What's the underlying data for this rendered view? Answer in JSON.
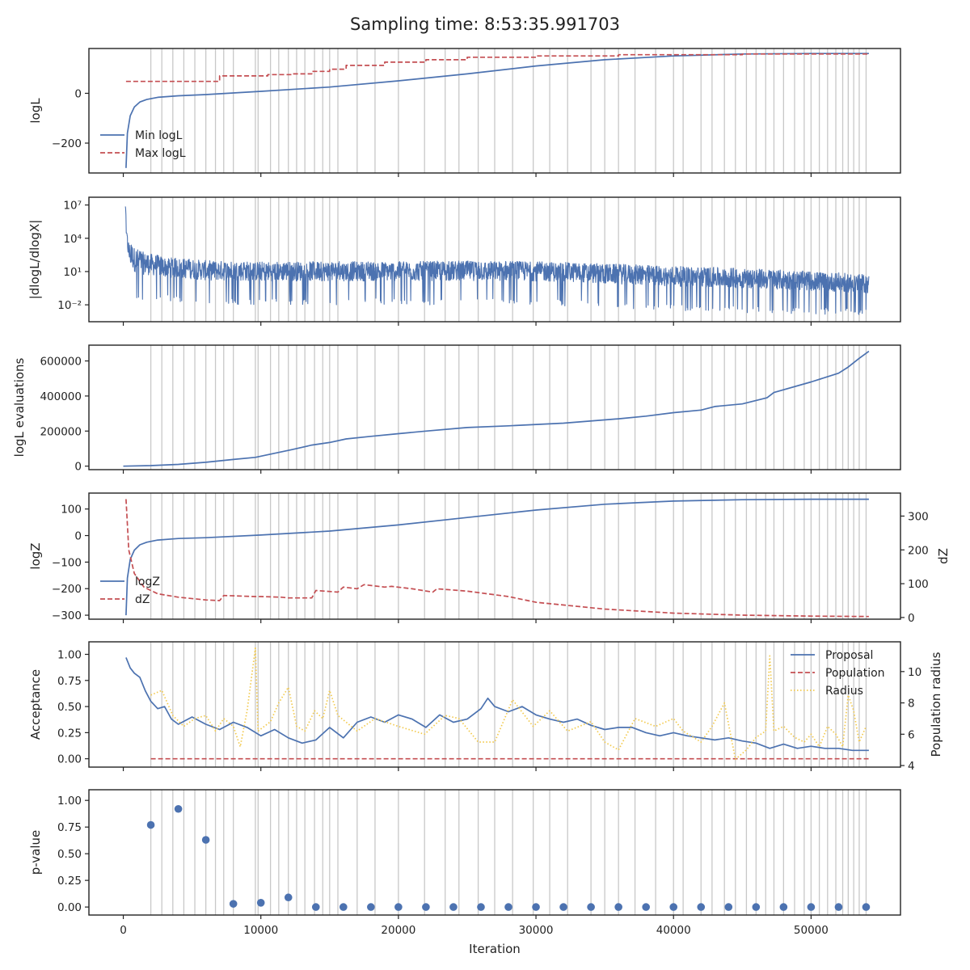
{
  "title": "Sampling time: 8:53:35.991703",
  "shared_x": {
    "label": "Iteration",
    "range": [
      -2500,
      56500
    ],
    "ticks": [
      0,
      10000,
      20000,
      30000,
      40000,
      50000
    ],
    "tick_labels": [
      "0",
      "10000",
      "20000",
      "30000",
      "40000",
      "50000"
    ],
    "vertical_markers": [
      2000,
      2800,
      3600,
      4400,
      5200,
      6000,
      6700,
      7300,
      8000,
      9600,
      9800,
      10700,
      11300,
      12000,
      12600,
      13200,
      13900,
      14500,
      15000,
      15600,
      17000,
      18300,
      20000,
      21900,
      23400,
      24400,
      25800,
      27000,
      28300,
      29800,
      31000,
      32300,
      34000,
      35000,
      36000,
      37200,
      38700,
      40000,
      40700,
      42000,
      42800,
      43700,
      44500,
      45300,
      46000,
      46700,
      47300,
      48000,
      48800,
      49500,
      50000,
      50600,
      51200,
      51800,
      52300,
      52700,
      53100,
      53500,
      54000
    ],
    "marker_color": "#c8c8c8"
  },
  "chart_data": [
    {
      "type": "line",
      "ylabel": "logL",
      "ylim": [
        -320,
        180
      ],
      "yticks": [
        -200,
        0
      ],
      "ytick_labels": [
        "−200",
        "0"
      ],
      "legend": {
        "position": "lower-left",
        "entries": [
          "Min logL",
          "Max logL"
        ]
      },
      "series": [
        {
          "name": "Min logL",
          "color": "#4c72b0",
          "style": "solid",
          "x": [
            200,
            300,
            500,
            800,
            1200,
            1700,
            2500,
            4000,
            6000,
            10000,
            15000,
            20000,
            25000,
            30000,
            35000,
            40000,
            45000,
            50000,
            54200
          ],
          "y": [
            -300,
            -160,
            -90,
            -55,
            -35,
            -25,
            -16,
            -10,
            -5,
            8,
            25,
            50,
            78,
            110,
            135,
            150,
            158,
            160,
            160
          ]
        },
        {
          "name": "Max logL",
          "color": "#c44e52",
          "style": "dashed",
          "x": [
            200,
            7000,
            7000,
            10500,
            10500,
            12300,
            12300,
            13700,
            13700,
            15000,
            15000,
            16200,
            16200,
            19000,
            19000,
            22000,
            22000,
            25000,
            25000,
            30000,
            30000,
            36000,
            36000,
            45000,
            45000,
            54200
          ],
          "y": [
            48,
            48,
            70,
            70,
            75,
            75,
            78,
            78,
            88,
            88,
            97,
            97,
            112,
            112,
            125,
            125,
            135,
            135,
            145,
            145,
            150,
            150,
            155,
            155,
            158,
            158
          ]
        }
      ]
    },
    {
      "type": "line",
      "ylabel": "|dlogL/dlogX|",
      "scale": "log",
      "ylim": [
        0.0003,
        50000000
      ],
      "yticks": [
        0.01,
        10,
        10000,
        10000000
      ],
      "ytick_labels": [
        "10⁻²",
        "10¹",
        "10⁴",
        "10⁷"
      ],
      "series": [
        {
          "name": "",
          "color": "#4c72b0",
          "style": "noisy-band",
          "x": [
            150,
            200,
            400,
            800,
            1500,
            3000,
            6000,
            10000,
            15000,
            20000,
            25000,
            30000,
            35000,
            40000,
            45000,
            50000,
            54200
          ],
          "upper": [
            10000000,
            50000,
            5000,
            1500,
            500,
            200,
            100,
            80,
            80,
            80,
            90,
            80,
            50,
            30,
            20,
            10,
            5
          ],
          "lower": [
            1000,
            5,
            0.1,
            0.02,
            0.02,
            0.02,
            0.01,
            0.01,
            0.01,
            0.01,
            0.01,
            0.01,
            0.005,
            0.003,
            0.002,
            0.0015,
            0.001
          ]
        }
      ]
    },
    {
      "type": "line",
      "ylabel": "logL evaluations",
      "ylim": [
        -20000,
        690000
      ],
      "yticks": [
        0,
        200000,
        400000,
        600000
      ],
      "ytick_labels": [
        "0",
        "200000",
        "400000",
        "600000"
      ],
      "series": [
        {
          "name": "",
          "color": "#4c72b0",
          "style": "solid",
          "x": [
            0,
            2000,
            4000,
            6000,
            8000,
            9600,
            10500,
            12300,
            13700,
            15000,
            16200,
            18000,
            20000,
            22000,
            25000,
            28000,
            32000,
            36000,
            38000,
            40000,
            42000,
            43000,
            45000,
            46800,
            47300,
            50000,
            52000,
            52700,
            53500,
            54200
          ],
          "y": [
            0,
            3000,
            10000,
            22000,
            38000,
            50000,
            65000,
            95000,
            120000,
            135000,
            155000,
            170000,
            185000,
            200000,
            220000,
            230000,
            245000,
            270000,
            285000,
            305000,
            320000,
            340000,
            355000,
            390000,
            420000,
            480000,
            530000,
            565000,
            615000,
            655000
          ]
        }
      ]
    },
    {
      "type": "line",
      "ylabel": "logZ",
      "ylim": [
        -315,
        160
      ],
      "yticks": [
        -300,
        -200,
        -100,
        0,
        100
      ],
      "ytick_labels": [
        "−300",
        "−200",
        "−100",
        "0",
        "100"
      ],
      "y2label": "dZ",
      "y2lim": [
        -5,
        368
      ],
      "y2ticks": [
        0,
        100,
        200,
        300
      ],
      "y2tick_labels": [
        "0",
        "100",
        "200",
        "300"
      ],
      "legend": {
        "position": "lower-left",
        "entries": [
          "logZ",
          "dZ"
        ]
      },
      "series": [
        {
          "name": "logZ",
          "axis": "left",
          "color": "#4c72b0",
          "style": "solid",
          "x": [
            200,
            300,
            500,
            800,
            1200,
            1700,
            2500,
            4000,
            6000,
            10000,
            15000,
            20000,
            25000,
            30000,
            35000,
            40000,
            45000,
            50000,
            54200
          ],
          "y": [
            -300,
            -160,
            -90,
            -55,
            -35,
            -25,
            -17,
            -11,
            -8,
            2,
            17,
            40,
            68,
            96,
            118,
            130,
            135,
            137,
            137
          ]
        },
        {
          "name": "dZ",
          "axis": "right",
          "color": "#c44e52",
          "style": "dashed",
          "x": [
            200,
            400,
            800,
            1500,
            2500,
            4000,
            6000,
            7000,
            7300,
            9600,
            10000,
            11500,
            12000,
            13700,
            14000,
            15600,
            16000,
            17000,
            17500,
            19000,
            19500,
            21000,
            22500,
            22800,
            25000,
            28000,
            30000,
            35000,
            40000,
            45000,
            50000,
            54200
          ],
          "y": [
            350,
            200,
            130,
            90,
            70,
            60,
            52,
            50,
            65,
            62,
            62,
            60,
            58,
            58,
            80,
            75,
            90,
            85,
            97,
            90,
            92,
            85,
            75,
            85,
            78,
            62,
            45,
            25,
            13,
            7,
            4,
            3
          ]
        }
      ]
    },
    {
      "type": "line",
      "ylabel": "Acceptance",
      "ylim": [
        -0.08,
        1.12
      ],
      "yticks": [
        0.0,
        0.25,
        0.5,
        0.75,
        1.0
      ],
      "ytick_labels": [
        "0.00",
        "0.25",
        "0.50",
        "0.75",
        "1.00"
      ],
      "y2label": "Population radius",
      "y2lim": [
        3.9,
        11.9
      ],
      "y2ticks": [
        4,
        6,
        8,
        10
      ],
      "y2tick_labels": [
        "4",
        "6",
        "8",
        "10"
      ],
      "legend": {
        "position": "top-right",
        "entries": [
          "Proposal",
          "Population",
          "Radius"
        ]
      },
      "series": [
        {
          "name": "Proposal",
          "axis": "left",
          "color": "#4c72b0",
          "style": "solid",
          "x": [
            200,
            500,
            800,
            1200,
            1600,
            2000,
            2500,
            3000,
            3500,
            4000,
            5000,
            6000,
            7000,
            8000,
            9000,
            10000,
            11000,
            12000,
            13000,
            14000,
            15000,
            16000,
            17000,
            18000,
            19000,
            20000,
            21000,
            22000,
            23000,
            24000,
            25000,
            26000,
            26500,
            27000,
            28000,
            29000,
            30000,
            31000,
            32000,
            33000,
            34000,
            35000,
            36000,
            37000,
            38000,
            39000,
            40000,
            41000,
            42000,
            43000,
            44000,
            45000,
            46000,
            47000,
            48000,
            49000,
            50000,
            51000,
            52000,
            53000,
            54200
          ],
          "y": [
            0.97,
            0.87,
            0.82,
            0.78,
            0.65,
            0.55,
            0.48,
            0.5,
            0.38,
            0.33,
            0.4,
            0.33,
            0.28,
            0.35,
            0.3,
            0.22,
            0.28,
            0.2,
            0.15,
            0.18,
            0.3,
            0.2,
            0.35,
            0.4,
            0.35,
            0.42,
            0.38,
            0.3,
            0.42,
            0.35,
            0.38,
            0.48,
            0.58,
            0.5,
            0.45,
            0.5,
            0.42,
            0.38,
            0.35,
            0.38,
            0.32,
            0.28,
            0.3,
            0.3,
            0.25,
            0.22,
            0.25,
            0.22,
            0.2,
            0.18,
            0.2,
            0.17,
            0.15,
            0.1,
            0.14,
            0.1,
            0.12,
            0.1,
            0.1,
            0.08,
            0.08
          ]
        },
        {
          "name": "Population",
          "axis": "left",
          "color": "#c44e52",
          "style": "dashed",
          "x": [
            2000,
            54200
          ],
          "y": [
            0.0,
            0.0
          ]
        },
        {
          "name": "Radius",
          "axis": "right",
          "color": "#f2c94c",
          "style": "dotted",
          "x": [
            2000,
            2800,
            3600,
            4400,
            5200,
            6000,
            6700,
            7300,
            8000,
            8500,
            9000,
            9600,
            9800,
            10700,
            11300,
            12000,
            12600,
            13200,
            13900,
            14500,
            15000,
            15600,
            17000,
            18300,
            20000,
            21900,
            23400,
            24400,
            25800,
            27000,
            28300,
            29800,
            31000,
            32300,
            34000,
            35000,
            36000,
            37200,
            38700,
            40000,
            40700,
            42000,
            42800,
            43700,
            44500,
            45300,
            46000,
            46700,
            47000,
            47300,
            48000,
            48800,
            49500,
            50000,
            50600,
            51200,
            51800,
            52300,
            52700,
            53100,
            53500,
            54000
          ],
          "y": [
            8.5,
            8.8,
            7.2,
            6.5,
            7.0,
            7.2,
            6.2,
            7.0,
            6.5,
            5.2,
            7.5,
            11.5,
            6.2,
            6.8,
            8.0,
            9.0,
            6.5,
            6.2,
            7.5,
            7.0,
            8.8,
            7.2,
            6.2,
            7.0,
            6.5,
            6.0,
            7.2,
            7.0,
            5.5,
            5.5,
            8.2,
            6.5,
            7.5,
            6.2,
            6.8,
            5.5,
            5.0,
            7.0,
            6.5,
            7.0,
            6.2,
            5.5,
            6.5,
            8.0,
            4.4,
            5.0,
            5.8,
            6.2,
            11.0,
            6.2,
            6.5,
            5.8,
            5.5,
            6.0,
            5.2,
            6.5,
            6.0,
            5.2,
            8.5,
            7.5,
            5.5,
            6.5
          ]
        }
      ]
    },
    {
      "type": "scatter",
      "ylabel": "p-value",
      "ylim": [
        -0.075,
        1.1
      ],
      "yticks": [
        0.0,
        0.25,
        0.5,
        0.75,
        1.0
      ],
      "ytick_labels": [
        "0.00",
        "0.25",
        "0.50",
        "0.75",
        "1.00"
      ],
      "series": [
        {
          "name": "",
          "color": "#4c72b0",
          "x": [
            2000,
            4000,
            6000,
            8000,
            10000,
            12000,
            14000,
            16000,
            18000,
            20000,
            22000,
            24000,
            26000,
            28000,
            30000,
            32000,
            34000,
            36000,
            38000,
            40000,
            42000,
            44000,
            46000,
            48000,
            50000,
            52000,
            54000
          ],
          "y": [
            0.77,
            0.92,
            0.63,
            0.03,
            0.04,
            0.09,
            0.0,
            0.0,
            0.0,
            0.0,
            0.0,
            0.0,
            0.0,
            0.0,
            0.0,
            0.0,
            0.0,
            0.0,
            0.0,
            0.0,
            0.0,
            0.0,
            0.0,
            0.0,
            0.0,
            0.0,
            0.0
          ]
        }
      ]
    }
  ]
}
